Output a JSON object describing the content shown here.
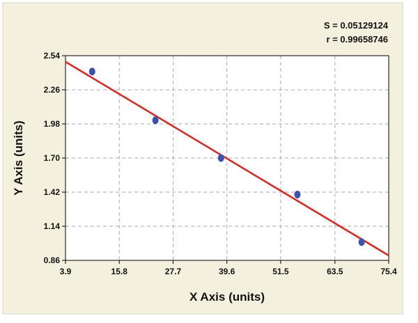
{
  "chart_data": {
    "type": "scatter",
    "annotations": [
      "S = 0.05129124",
      "r = 0.99658746"
    ],
    "xlabel": "X Axis (units)",
    "ylabel": "Y Axis (units)",
    "x": [
      9.8,
      23.8,
      38.3,
      55.2,
      69.4
    ],
    "values": [
      2.41,
      2.01,
      1.7,
      1.4,
      1.01
    ],
    "color": "#3b53a8",
    "fit_line": {
      "x": [
        3.9,
        75.4
      ],
      "values": [
        2.49,
        0.9
      ],
      "color": "#e0231b"
    },
    "xlim": [
      3.9,
      75.4
    ],
    "xticks": [
      3.9,
      15.8,
      27.7,
      39.6,
      51.5,
      63.5,
      75.4
    ],
    "ylim": [
      0.86,
      2.54
    ],
    "yticks": [
      0.86,
      1.14,
      1.42,
      {
        "value": 1.7,
        "label": "1.70"
      },
      1.98,
      2.26,
      2.54
    ],
    "grid": true
  }
}
